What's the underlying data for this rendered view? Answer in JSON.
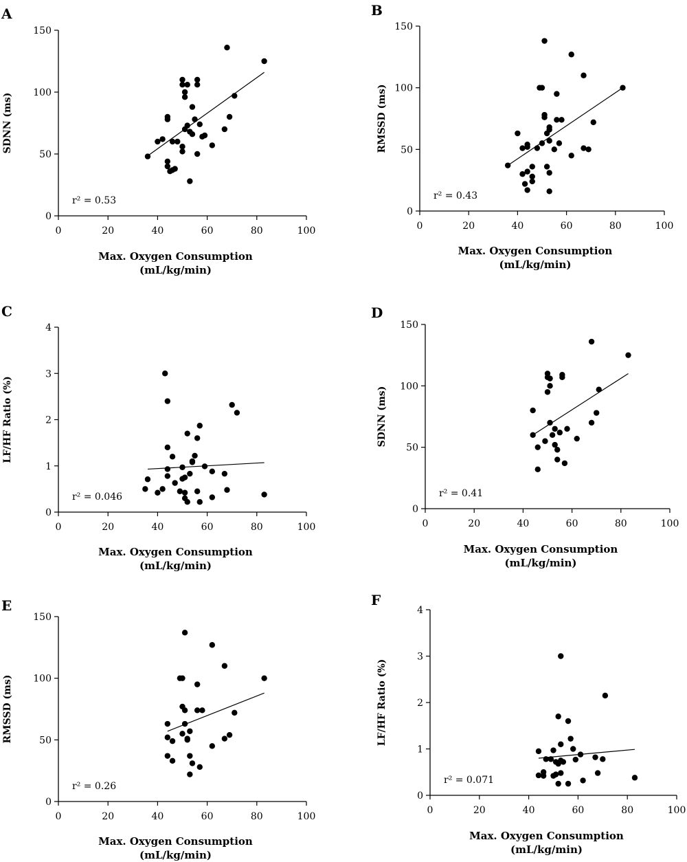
{
  "chart_data": [
    {
      "panel": "A",
      "type": "scatter",
      "xlabel": "Max. Oxygen Consumption",
      "xunit": "(mL/kg/min)",
      "ylabel": "SDNN (ms)",
      "xlim": [
        0,
        100
      ],
      "ylim": [
        0,
        150
      ],
      "xticks": [
        0,
        20,
        40,
        60,
        80,
        100
      ],
      "yticks": [
        0,
        50,
        100,
        150
      ],
      "annotation": "r² = 0.53",
      "fit": {
        "x": [
          36,
          83
        ],
        "y": [
          48.5,
          116
        ]
      },
      "points": [
        [
          36,
          48
        ],
        [
          40,
          60
        ],
        [
          42,
          62
        ],
        [
          44,
          40
        ],
        [
          44,
          44
        ],
        [
          44,
          78
        ],
        [
          44,
          80
        ],
        [
          45,
          36
        ],
        [
          46,
          37
        ],
        [
          46,
          60
        ],
        [
          47,
          38
        ],
        [
          48,
          60
        ],
        [
          50,
          106
        ],
        [
          50,
          110
        ],
        [
          50,
          56
        ],
        [
          50,
          52
        ],
        [
          51,
          96
        ],
        [
          51,
          70
        ],
        [
          51,
          100
        ],
        [
          52,
          106
        ],
        [
          52,
          73
        ],
        [
          53,
          28
        ],
        [
          53,
          68
        ],
        [
          54,
          88
        ],
        [
          54,
          66
        ],
        [
          55,
          78
        ],
        [
          56,
          50
        ],
        [
          56,
          110
        ],
        [
          56,
          106
        ],
        [
          57,
          74
        ],
        [
          58,
          64
        ],
        [
          59,
          65
        ],
        [
          62,
          57
        ],
        [
          67,
          70
        ],
        [
          68,
          136
        ],
        [
          69,
          80
        ],
        [
          71,
          97
        ],
        [
          83,
          125
        ]
      ]
    },
    {
      "panel": "B",
      "type": "scatter",
      "xlabel": "Max. Oxygen Consumption",
      "xunit": "(mL/kg/min)",
      "ylabel": "RMSSD (ms)",
      "xlim": [
        0,
        100
      ],
      "ylim": [
        0,
        150
      ],
      "xticks": [
        0,
        20,
        40,
        60,
        80,
        100
      ],
      "yticks": [
        0,
        50,
        100,
        150
      ],
      "annotation": "r² = 0.43",
      "fit": {
        "x": [
          36,
          83
        ],
        "y": [
          37,
          100
        ]
      },
      "points": [
        [
          36,
          37
        ],
        [
          40,
          63
        ],
        [
          42,
          51
        ],
        [
          42,
          30
        ],
        [
          43,
          22
        ],
        [
          44,
          54
        ],
        [
          44,
          52
        ],
        [
          44,
          17
        ],
        [
          44,
          32
        ],
        [
          46,
          36
        ],
        [
          46,
          28
        ],
        [
          46,
          24
        ],
        [
          48,
          51
        ],
        [
          49,
          100
        ],
        [
          50,
          100
        ],
        [
          50,
          55
        ],
        [
          51,
          78
        ],
        [
          51,
          76
        ],
        [
          51,
          138
        ],
        [
          52,
          63
        ],
        [
          52,
          36
        ],
        [
          53,
          57
        ],
        [
          53,
          66
        ],
        [
          53,
          68
        ],
        [
          53,
          16
        ],
        [
          53,
          31
        ],
        [
          55,
          50
        ],
        [
          56,
          95
        ],
        [
          56,
          74
        ],
        [
          57,
          55
        ],
        [
          58,
          74
        ],
        [
          62,
          45
        ],
        [
          62,
          127
        ],
        [
          67,
          110
        ],
        [
          67,
          51
        ],
        [
          69,
          50
        ],
        [
          71,
          72
        ],
        [
          83,
          100
        ]
      ]
    },
    {
      "panel": "C",
      "type": "scatter",
      "xlabel": "Max. Oxygen Consumption",
      "xunit": "(mL/kg/min)",
      "ylabel": "LF/HF Ratio (%)",
      "xlim": [
        0,
        100
      ],
      "ylim": [
        0,
        4
      ],
      "xticks": [
        0,
        20,
        40,
        60,
        80,
        100
      ],
      "yticks": [
        0,
        1,
        2,
        3,
        4
      ],
      "annotation": "r² = 0.046",
      "fit": {
        "x": [
          36,
          83
        ],
        "y": [
          0.93,
          1.07
        ]
      },
      "points": [
        [
          35,
          0.5
        ],
        [
          36,
          0.71
        ],
        [
          40,
          0.42
        ],
        [
          42,
          0.5
        ],
        [
          43,
          3.0
        ],
        [
          44,
          2.4
        ],
        [
          44,
          1.4
        ],
        [
          44,
          0.93
        ],
        [
          44,
          0.78
        ],
        [
          46,
          1.2
        ],
        [
          47,
          0.63
        ],
        [
          49,
          0.45
        ],
        [
          50,
          0.97
        ],
        [
          50,
          0.72
        ],
        [
          51,
          0.75
        ],
        [
          51,
          0.42
        ],
        [
          51,
          0.3
        ],
        [
          52,
          0.22
        ],
        [
          52,
          1.7
        ],
        [
          53,
          0.83
        ],
        [
          54,
          1.1
        ],
        [
          54,
          1.08
        ],
        [
          55,
          1.22
        ],
        [
          56,
          0.45
        ],
        [
          56,
          1.6
        ],
        [
          57,
          0.22
        ],
        [
          57,
          1.87
        ],
        [
          59,
          0.99
        ],
        [
          62,
          0.88
        ],
        [
          62,
          0.32
        ],
        [
          67,
          0.83
        ],
        [
          68,
          0.48
        ],
        [
          70,
          2.32
        ],
        [
          72,
          2.15
        ],
        [
          83,
          0.38
        ]
      ]
    },
    {
      "panel": "D",
      "type": "scatter",
      "xlabel": "Max. Oxygen Consumption",
      "xunit": "(mL/kg/min)",
      "ylabel": "SDNN (ms)",
      "xlim": [
        0,
        100
      ],
      "ylim": [
        0,
        150
      ],
      "xticks": [
        0,
        20,
        40,
        60,
        80,
        100
      ],
      "yticks": [
        0,
        50,
        100,
        150
      ],
      "annotation": "r² = 0.41",
      "fit": {
        "x": [
          44,
          83
        ],
        "y": [
          60,
          110
        ]
      },
      "points": [
        [
          44,
          60
        ],
        [
          44,
          80
        ],
        [
          46,
          32
        ],
        [
          46,
          50
        ],
        [
          49,
          55
        ],
        [
          50,
          110
        ],
        [
          50,
          107
        ],
        [
          50,
          95
        ],
        [
          51,
          100
        ],
        [
          51,
          70
        ],
        [
          51,
          106
        ],
        [
          52,
          60
        ],
        [
          53,
          65
        ],
        [
          53,
          52
        ],
        [
          54,
          48
        ],
        [
          54,
          40
        ],
        [
          55,
          62
        ],
        [
          56,
          109
        ],
        [
          56,
          107
        ],
        [
          57,
          37
        ],
        [
          58,
          65
        ],
        [
          62,
          57
        ],
        [
          68,
          70
        ],
        [
          68,
          136
        ],
        [
          70,
          78
        ],
        [
          71,
          97
        ],
        [
          83,
          125
        ]
      ]
    },
    {
      "panel": "E",
      "type": "scatter",
      "xlabel": "Max. Oxygen Consumption",
      "xunit": "(mL/kg/min)",
      "ylabel": "RMSSD (ms)",
      "xlim": [
        0,
        100
      ],
      "ylim": [
        0,
        150
      ],
      "xticks": [
        0,
        20,
        40,
        60,
        80,
        100
      ],
      "yticks": [
        0,
        50,
        100,
        150
      ],
      "annotation": "r² = 0.26",
      "fit": {
        "x": [
          44,
          83
        ],
        "y": [
          57,
          88
        ]
      },
      "points": [
        [
          44,
          52
        ],
        [
          44,
          37
        ],
        [
          44,
          63
        ],
        [
          46,
          33
        ],
        [
          46,
          49
        ],
        [
          49,
          100
        ],
        [
          50,
          100
        ],
        [
          50,
          55
        ],
        [
          50,
          77
        ],
        [
          51,
          137
        ],
        [
          51,
          74
        ],
        [
          51,
          63
        ],
        [
          52,
          50
        ],
        [
          52,
          51
        ],
        [
          53,
          57
        ],
        [
          53,
          37
        ],
        [
          53,
          22
        ],
        [
          54,
          31
        ],
        [
          56,
          95
        ],
        [
          56,
          74
        ],
        [
          57,
          28
        ],
        [
          58,
          74
        ],
        [
          62,
          45
        ],
        [
          62,
          127
        ],
        [
          67,
          110
        ],
        [
          67,
          51
        ],
        [
          69,
          54
        ],
        [
          71,
          72
        ],
        [
          83,
          100
        ]
      ]
    },
    {
      "panel": "F",
      "type": "scatter",
      "xlabel": "Max. Oxygen Consumption",
      "xunit": "(mL/kg/min)",
      "ylabel": "LF/HF Ratio (%)",
      "xlim": [
        0,
        100
      ],
      "ylim": [
        0,
        4
      ],
      "xticks": [
        0,
        20,
        40,
        60,
        80,
        100
      ],
      "yticks": [
        0,
        1,
        2,
        3,
        4
      ],
      "annotation": "r² = 0.071",
      "fit": {
        "x": [
          44,
          83
        ],
        "y": [
          0.8,
          0.99
        ]
      },
      "points": [
        [
          44,
          0.95
        ],
        [
          44,
          0.43
        ],
        [
          46,
          0.42
        ],
        [
          46,
          0.5
        ],
        [
          47,
          0.78
        ],
        [
          49,
          0.78
        ],
        [
          50,
          0.97
        ],
        [
          50,
          0.42
        ],
        [
          51,
          0.72
        ],
        [
          51,
          0.45
        ],
        [
          52,
          0.68
        ],
        [
          52,
          0.25
        ],
        [
          52,
          1.7
        ],
        [
          53,
          1.1
        ],
        [
          53,
          0.75
        ],
        [
          53,
          3.0
        ],
        [
          53,
          0.48
        ],
        [
          54,
          0.72
        ],
        [
          56,
          0.25
        ],
        [
          56,
          1.6
        ],
        [
          57,
          1.22
        ],
        [
          58,
          1.0
        ],
        [
          59,
          0.77
        ],
        [
          61,
          0.88
        ],
        [
          62,
          0.32
        ],
        [
          67,
          0.82
        ],
        [
          68,
          0.48
        ],
        [
          70,
          0.78
        ],
        [
          71,
          2.15
        ],
        [
          83,
          0.38
        ]
      ]
    }
  ]
}
